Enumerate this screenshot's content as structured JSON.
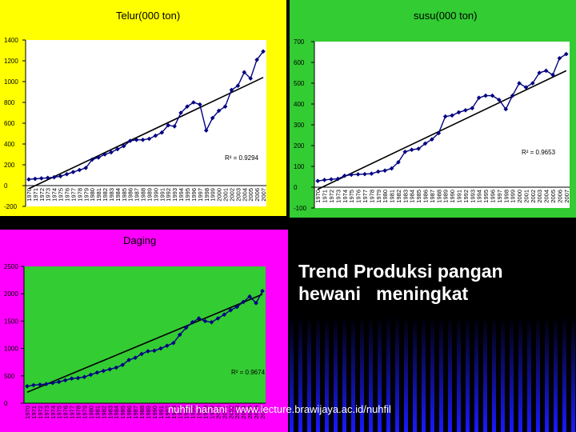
{
  "slide": {
    "headline_line1": "Trend Produksi pangan",
    "headline_line2": "hewani   meningkat",
    "footer": "nuhfil hanani : www.lecture.brawijaya.ac.id/nuhfil"
  },
  "colors": {
    "telur_bg": "#ffff00",
    "susu_bg": "#33cc33",
    "daging_bg": "#ff00ff",
    "plot_bg": "#ffffff",
    "daging_plot_bg": "#33cc33",
    "series_line": "#000080",
    "trend_line": "#000000"
  },
  "chart_data": [
    {
      "id": "telur",
      "type": "line",
      "title": "Telur(000 ton)",
      "r2_label": "R² = 0.9294",
      "x": [
        1970,
        1971,
        1972,
        1973,
        1974,
        1975,
        1976,
        1977,
        1978,
        1979,
        1980,
        1981,
        1982,
        1983,
        1984,
        1985,
        1986,
        1987,
        1988,
        1989,
        1990,
        1991,
        1992,
        1993,
        1994,
        1995,
        1996,
        1997,
        1998,
        1999,
        2000,
        2001,
        2002,
        2003,
        2004,
        2005,
        2006,
        2007
      ],
      "y_ticks": [
        -200,
        0,
        200,
        400,
        600,
        800,
        1000,
        1200,
        1400
      ],
      "ylim": [
        -200,
        1400
      ],
      "series": [
        {
          "values": [
            60,
            65,
            70,
            75,
            80,
            90,
            110,
            130,
            150,
            170,
            250,
            270,
            300,
            320,
            350,
            380,
            430,
            440,
            440,
            450,
            480,
            510,
            580,
            570,
            700,
            760,
            800,
            780,
            530,
            650,
            720,
            760,
            920,
            960,
            1090,
            1030,
            1210,
            1290
          ]
        }
      ],
      "trend": {
        "start": -30,
        "end": 1040
      }
    },
    {
      "id": "susu",
      "type": "line",
      "title": "susu(000 ton)",
      "r2_label": "R² = 0.9653",
      "x": [
        1970,
        1971,
        1972,
        1973,
        1974,
        1975,
        1976,
        1977,
        1978,
        1979,
        1980,
        1981,
        1982,
        1983,
        1984,
        1985,
        1986,
        1987,
        1988,
        1989,
        1990,
        1991,
        1992,
        1993,
        1994,
        1995,
        1996,
        1997,
        1998,
        1999,
        2000,
        2001,
        2002,
        2003,
        2004,
        2005,
        2006,
        2007
      ],
      "y_ticks": [
        -100,
        0,
        100,
        200,
        300,
        400,
        500,
        600,
        700
      ],
      "ylim": [
        -100,
        700
      ],
      "series": [
        {
          "values": [
            30,
            35,
            38,
            40,
            55,
            60,
            62,
            63,
            65,
            75,
            80,
            90,
            120,
            170,
            180,
            185,
            210,
            230,
            260,
            340,
            345,
            360,
            370,
            380,
            430,
            440,
            440,
            420,
            375,
            440,
            500,
            480,
            500,
            550,
            560,
            540,
            620,
            640
          ]
        }
      ],
      "trend": {
        "start": -10,
        "end": 560
      }
    },
    {
      "id": "daging",
      "type": "line",
      "title": "Daging",
      "r2_label": "R² = 0.9674",
      "x": [
        1970,
        1971,
        1972,
        1973,
        1974,
        1975,
        1976,
        1977,
        1978,
        1979,
        1980,
        1981,
        1982,
        1983,
        1984,
        1985,
        1986,
        1987,
        1988,
        1989,
        1990,
        1991,
        1992,
        1993,
        1994,
        1995,
        1996,
        1997,
        1998,
        1999,
        2000,
        2001,
        2002,
        2003,
        2004,
        2005,
        2006,
        2007
      ],
      "y_ticks": [
        0,
        500,
        1000,
        1500,
        2000,
        2500
      ],
      "ylim": [
        0,
        2500
      ],
      "series": [
        {
          "values": [
            310,
            330,
            340,
            350,
            370,
            390,
            420,
            450,
            460,
            480,
            520,
            560,
            590,
            620,
            650,
            700,
            790,
            830,
            900,
            950,
            960,
            1000,
            1050,
            1100,
            1250,
            1380,
            1480,
            1550,
            1500,
            1480,
            1550,
            1620,
            1700,
            1760,
            1850,
            1950,
            1830,
            2050
          ]
        }
      ],
      "trend": {
        "start": 200,
        "end": 1990
      }
    }
  ]
}
